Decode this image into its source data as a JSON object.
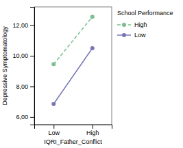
{
  "chart_data": {
    "type": "line",
    "xlabel": "IQRI_Father_Conflict",
    "ylabel": "Depressive Symptomatology",
    "categories": [
      "Low",
      "High"
    ],
    "series": [
      {
        "name": "High",
        "color": "#7abf8e",
        "line_style": "dashed",
        "marker": "circle",
        "values": [
          9.45,
          12.55
        ]
      },
      {
        "name": "Low",
        "color": "#7878b8",
        "line_style": "solid",
        "marker": "circle",
        "values": [
          6.85,
          10.5
        ]
      }
    ],
    "ylim": [
      5.5,
      13.2
    ],
    "yticks": [
      {
        "value": 6.0,
        "label": "6,00"
      },
      {
        "value": 8.0,
        "label": "8,00"
      },
      {
        "value": 10.0,
        "label": "10,00"
      },
      {
        "value": 12.0,
        "label": "12,00"
      }
    ],
    "grid": false,
    "legend": "right",
    "legend_title": "School Performance"
  }
}
